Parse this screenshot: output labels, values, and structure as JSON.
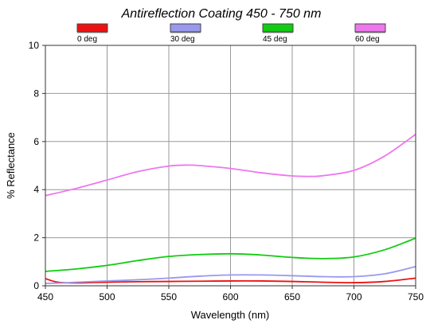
{
  "chart_data": {
    "type": "line",
    "title": "Antireflection Coating 450 - 750 nm",
    "xlabel": "Wavelength (nm)",
    "ylabel": "% Reflectance",
    "xlim": [
      450,
      750
    ],
    "ylim": [
      0,
      10
    ],
    "xticks": [
      "450",
      "500",
      "550",
      "600",
      "650",
      "700",
      "750"
    ],
    "yticks": [
      "0",
      "2",
      "4",
      "6",
      "8",
      "10"
    ],
    "grid": true,
    "legend_position": "top",
    "series": [
      {
        "name": "0 deg",
        "color": "#ee1111",
        "points": [
          [
            450,
            0.3
          ],
          [
            460,
            0.15
          ],
          [
            475,
            0.12
          ],
          [
            500,
            0.15
          ],
          [
            525,
            0.17
          ],
          [
            550,
            0.18
          ],
          [
            575,
            0.19
          ],
          [
            600,
            0.2
          ],
          [
            625,
            0.2
          ],
          [
            650,
            0.18
          ],
          [
            675,
            0.15
          ],
          [
            700,
            0.13
          ],
          [
            725,
            0.18
          ],
          [
            750,
            0.32
          ]
        ]
      },
      {
        "name": "30 deg",
        "color": "#9999ee",
        "points": [
          [
            450,
            0.1
          ],
          [
            465,
            0.12
          ],
          [
            475,
            0.15
          ],
          [
            500,
            0.2
          ],
          [
            525,
            0.25
          ],
          [
            550,
            0.32
          ],
          [
            575,
            0.4
          ],
          [
            600,
            0.45
          ],
          [
            625,
            0.45
          ],
          [
            650,
            0.42
          ],
          [
            675,
            0.38
          ],
          [
            700,
            0.38
          ],
          [
            725,
            0.5
          ],
          [
            750,
            0.8
          ]
        ]
      },
      {
        "name": "45 deg",
        "color": "#11cc11",
        "points": [
          [
            450,
            0.6
          ],
          [
            475,
            0.7
          ],
          [
            500,
            0.85
          ],
          [
            525,
            1.05
          ],
          [
            550,
            1.22
          ],
          [
            575,
            1.3
          ],
          [
            600,
            1.33
          ],
          [
            625,
            1.28
          ],
          [
            650,
            1.18
          ],
          [
            675,
            1.13
          ],
          [
            700,
            1.2
          ],
          [
            725,
            1.5
          ],
          [
            750,
            1.98
          ]
        ]
      },
      {
        "name": "60 deg",
        "color": "#ee77ee",
        "points": [
          [
            450,
            3.75
          ],
          [
            475,
            4.05
          ],
          [
            500,
            4.4
          ],
          [
            525,
            4.75
          ],
          [
            550,
            4.98
          ],
          [
            565,
            5.02
          ],
          [
            575,
            5.0
          ],
          [
            600,
            4.88
          ],
          [
            625,
            4.7
          ],
          [
            650,
            4.57
          ],
          [
            665,
            4.55
          ],
          [
            675,
            4.58
          ],
          [
            700,
            4.8
          ],
          [
            725,
            5.4
          ],
          [
            750,
            6.3
          ]
        ]
      }
    ]
  }
}
